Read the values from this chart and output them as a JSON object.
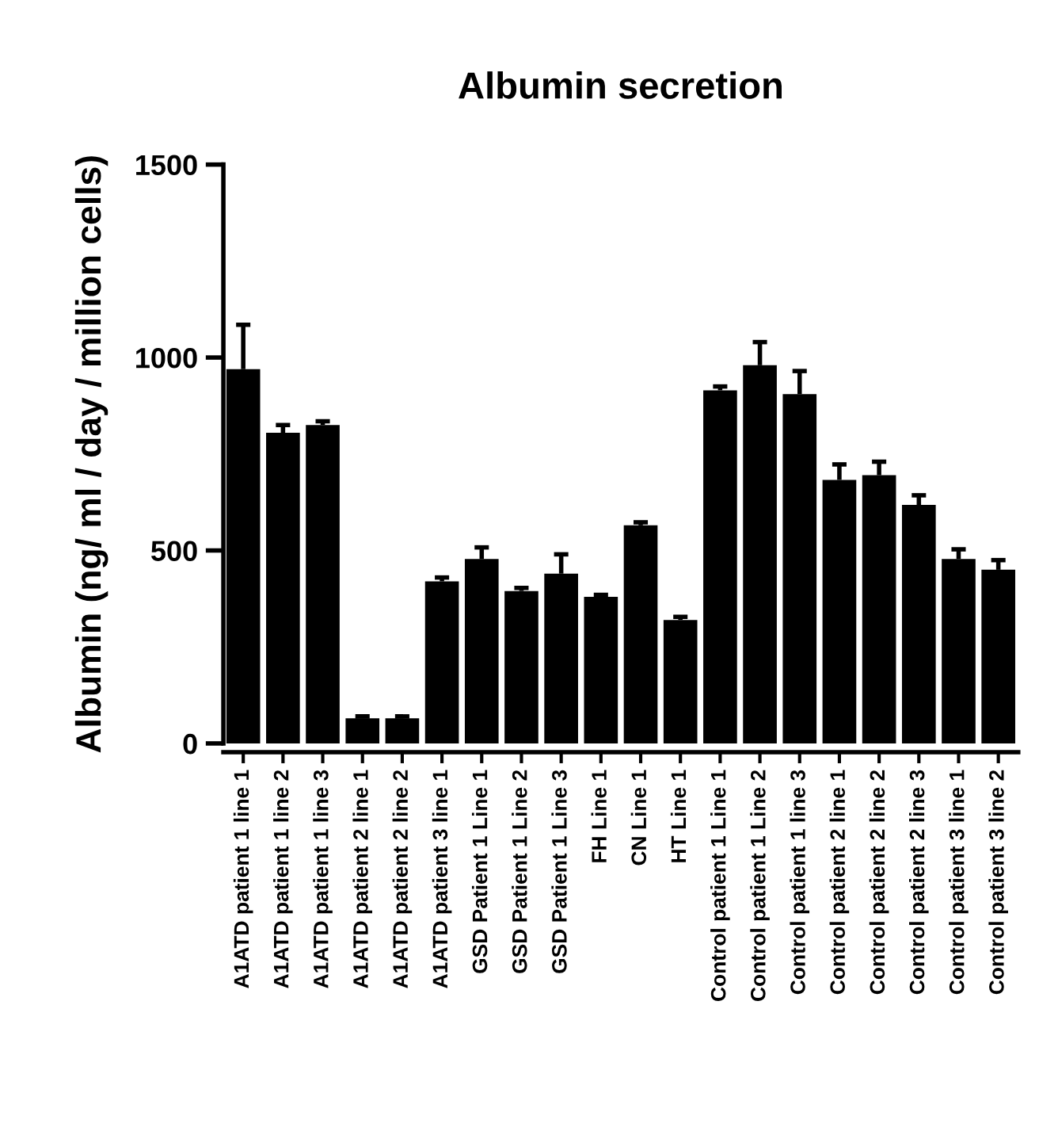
{
  "chart_data": {
    "type": "bar",
    "title": "Albumin secretion",
    "ylabel": "Albumin (ng/ ml / day / million cells)",
    "categories": [
      "A1ATD patient 1 line 1",
      "A1ATD patient 1 line 2",
      "A1ATD patient 1 line 3",
      "A1ATD patient 2 line 1",
      "A1ATD patient 2 line 2",
      "A1ATD patient 3 line 1",
      "GSD Patient 1 Line 1",
      "GSD Patient 1 Line 2",
      "GSD Patient 1 Line 3",
      "FH Line 1",
      "CN Line 1",
      "HT Line 1",
      "Control patient 1 Line 1",
      "Control patient 1 Line 2",
      "Control patient 1 line 3",
      "Control patient 2 line 1",
      "Control patient 2 line 2",
      "Control patient 2 line 3",
      "Control patient 3 line 1",
      "Control patient 3 line 2"
    ],
    "values": [
      970,
      805,
      825,
      65,
      65,
      420,
      478,
      395,
      440,
      380,
      565,
      320,
      915,
      980,
      905,
      683,
      695,
      618,
      478,
      450
    ],
    "errors": [
      [
        970,
        1085
      ],
      [
        805,
        825
      ],
      [
        825,
        835
      ],
      [
        65,
        70
      ],
      [
        65,
        70
      ],
      [
        420,
        430
      ],
      [
        478,
        508
      ],
      [
        395,
        403
      ],
      [
        440,
        490
      ],
      [
        380,
        385
      ],
      [
        565,
        573
      ],
      [
        320,
        328
      ],
      [
        915,
        925
      ],
      [
        980,
        1040
      ],
      [
        905,
        965
      ],
      [
        683,
        723
      ],
      [
        695,
        730
      ],
      [
        618,
        643
      ],
      [
        478,
        503
      ],
      [
        450,
        475
      ]
    ],
    "color": "#000000",
    "ylim": [
      0,
      1500
    ],
    "yticks": [
      0,
      500,
      1000,
      1500
    ],
    "grid": false,
    "legend": false
  }
}
